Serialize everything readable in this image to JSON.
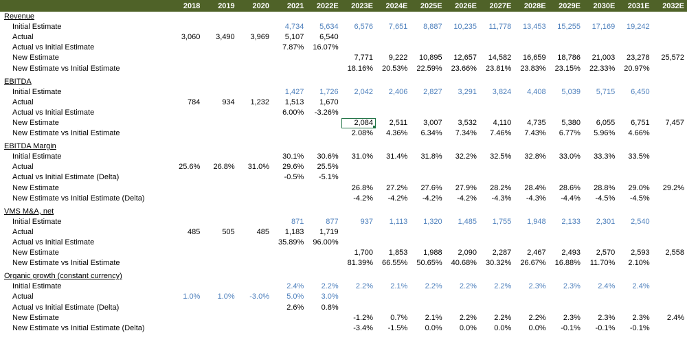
{
  "header": {
    "label": "",
    "years": [
      "2018",
      "2019",
      "2020",
      "2021",
      "2022E",
      "2023E",
      "2024E",
      "2025E",
      "2026E",
      "2027E",
      "2028E",
      "2029E",
      "2030E",
      "2031E",
      "2032E"
    ]
  },
  "sections": [
    {
      "title": "Revenue",
      "rows": [
        {
          "label": "Initial Estimate",
          "values": [
            "",
            "",
            "",
            "4,734",
            "5,634",
            "6,576",
            "7,651",
            "8,887",
            "10,235",
            "11,778",
            "13,453",
            "15,255",
            "17,169",
            "19,242",
            ""
          ],
          "blue": [
            3,
            4,
            5,
            6,
            7,
            8,
            9,
            10,
            11,
            12,
            13
          ]
        },
        {
          "label": "Actual",
          "values": [
            "3,060",
            "3,490",
            "3,969",
            "5,107",
            "6,540",
            "",
            "",
            "",
            "",
            "",
            "",
            "",
            "",
            "",
            ""
          ],
          "blue": []
        },
        {
          "label": "Actual vs Initial Estimate",
          "values": [
            "",
            "",
            "",
            "7.87%",
            "16.07%",
            "",
            "",
            "",
            "",
            "",
            "",
            "",
            "",
            "",
            ""
          ],
          "blue": []
        },
        {
          "label": "New Estimate",
          "values": [
            "",
            "",
            "",
            "",
            "",
            "7,771",
            "9,222",
            "10,895",
            "12,657",
            "14,582",
            "16,659",
            "18,786",
            "21,003",
            "23,278",
            "25,572"
          ],
          "blue": []
        },
        {
          "label": "New Estimate vs Initial Estimate",
          "values": [
            "",
            "",
            "",
            "",
            "",
            "18.16%",
            "20.53%",
            "22.59%",
            "23.66%",
            "23.81%",
            "23.83%",
            "23.15%",
            "22.33%",
            "20.97%",
            ""
          ],
          "blue": []
        }
      ]
    },
    {
      "title": "EBITDA",
      "rows": [
        {
          "label": "Initial Estimate",
          "values": [
            "",
            "",
            "",
            "1,427",
            "1,726",
            "2,042",
            "2,406",
            "2,827",
            "3,291",
            "3,824",
            "4,408",
            "5,039",
            "5,715",
            "6,450",
            ""
          ],
          "blue": [
            3,
            4,
            5,
            6,
            7,
            8,
            9,
            10,
            11,
            12,
            13
          ]
        },
        {
          "label": "Actual",
          "values": [
            "784",
            "934",
            "1,232",
            "1,513",
            "1,670",
            "",
            "",
            "",
            "",
            "",
            "",
            "",
            "",
            "",
            ""
          ],
          "blue": []
        },
        {
          "label": "Actual vs Initial Estimate",
          "values": [
            "",
            "",
            "",
            "6.00%",
            "-3.26%",
            "",
            "",
            "",
            "",
            "",
            "",
            "",
            "",
            "",
            ""
          ],
          "blue": []
        },
        {
          "label": "New Estimate",
          "values": [
            "",
            "",
            "",
            "",
            "",
            "2,084",
            "2,511",
            "3,007",
            "3,532",
            "4,110",
            "4,735",
            "5,380",
            "6,055",
            "6,751",
            "7,457"
          ],
          "blue": [],
          "selected": 5
        },
        {
          "label": "New Estimate vs Initial Estimate",
          "values": [
            "",
            "",
            "",
            "",
            "",
            "2.08%",
            "4.36%",
            "6.34%",
            "7.34%",
            "7.46%",
            "7.43%",
            "6.77%",
            "5.96%",
            "4.66%",
            ""
          ],
          "blue": []
        }
      ]
    },
    {
      "title": "EBITDA Margin",
      "rows": [
        {
          "label": "Initial Estimate",
          "values": [
            "",
            "",
            "",
            "30.1%",
            "30.6%",
            "31.0%",
            "31.4%",
            "31.8%",
            "32.2%",
            "32.5%",
            "32.8%",
            "33.0%",
            "33.3%",
            "33.5%",
            ""
          ],
          "blue": []
        },
        {
          "label": "Actual",
          "values": [
            "25.6%",
            "26.8%",
            "31.0%",
            "29.6%",
            "25.5%",
            "",
            "",
            "",
            "",
            "",
            "",
            "",
            "",
            "",
            ""
          ],
          "blue": []
        },
        {
          "label": "Actual vs Initial Estimate (Delta)",
          "values": [
            "",
            "",
            "",
            "-0.5%",
            "-5.1%",
            "",
            "",
            "",
            "",
            "",
            "",
            "",
            "",
            "",
            ""
          ],
          "blue": []
        },
        {
          "label": "New Estimate",
          "values": [
            "",
            "",
            "",
            "",
            "",
            "26.8%",
            "27.2%",
            "27.6%",
            "27.9%",
            "28.2%",
            "28.4%",
            "28.6%",
            "28.8%",
            "29.0%",
            "29.2%"
          ],
          "blue": []
        },
        {
          "label": "New Estimate vs Initial Estimate (Delta)",
          "values": [
            "",
            "",
            "",
            "",
            "",
            "-4.2%",
            "-4.2%",
            "-4.2%",
            "-4.2%",
            "-4.3%",
            "-4.3%",
            "-4.4%",
            "-4.5%",
            "-4.5%",
            ""
          ],
          "blue": []
        }
      ]
    },
    {
      "title": "VMS M&A, net",
      "rows": [
        {
          "label": "Initial Estimate",
          "values": [
            "",
            "",
            "",
            "871",
            "877",
            "937",
            "1,113",
            "1,320",
            "1,485",
            "1,755",
            "1,948",
            "2,133",
            "2,301",
            "2,540",
            ""
          ],
          "blue": [
            3,
            4,
            5,
            6,
            7,
            8,
            9,
            10,
            11,
            12,
            13
          ]
        },
        {
          "label": "Actual",
          "values": [
            "485",
            "505",
            "485",
            "1,183",
            "1,719",
            "",
            "",
            "",
            "",
            "",
            "",
            "",
            "",
            "",
            ""
          ],
          "blue": []
        },
        {
          "label": "Actual vs Initial Estimate",
          "values": [
            "",
            "",
            "",
            "35.89%",
            "96.00%",
            "",
            "",
            "",
            "",
            "",
            "",
            "",
            "",
            "",
            ""
          ],
          "blue": []
        },
        {
          "label": "New Estimate",
          "values": [
            "",
            "",
            "",
            "",
            "",
            "1,700",
            "1,853",
            "1,988",
            "2,090",
            "2,287",
            "2,467",
            "2,493",
            "2,570",
            "2,593",
            "2,558"
          ],
          "blue": []
        },
        {
          "label": "New Estimate vs Initial Estimate",
          "values": [
            "",
            "",
            "",
            "",
            "",
            "81.39%",
            "66.55%",
            "50.65%",
            "40.68%",
            "30.32%",
            "26.67%",
            "16.88%",
            "11.70%",
            "2.10%",
            ""
          ],
          "blue": []
        }
      ]
    },
    {
      "title": "Organic growth (constant currency)",
      "rows": [
        {
          "label": "Initial Estimate",
          "values": [
            "",
            "",
            "",
            "2.4%",
            "2.2%",
            "2.2%",
            "2.1%",
            "2.2%",
            "2.2%",
            "2.2%",
            "2.3%",
            "2.3%",
            "2.4%",
            "2.4%",
            ""
          ],
          "blue": [
            3,
            4,
            5,
            6,
            7,
            8,
            9,
            10,
            11,
            12,
            13
          ]
        },
        {
          "label": "Actual",
          "values": [
            "1.0%",
            "1.0%",
            "-3.0%",
            "5.0%",
            "3.0%",
            "",
            "",
            "",
            "",
            "",
            "",
            "",
            "",
            "",
            ""
          ],
          "blue": [
            0,
            1,
            2,
            3,
            4
          ]
        },
        {
          "label": "Actual vs Initial Estimate (Delta)",
          "values": [
            "",
            "",
            "",
            "2.6%",
            "0.8%",
            "",
            "",
            "",
            "",
            "",
            "",
            "",
            "",
            "",
            ""
          ],
          "blue": []
        },
        {
          "label": "New Estimate",
          "values": [
            "",
            "",
            "",
            "",
            "",
            "-1.2%",
            "0.7%",
            "2.1%",
            "2.2%",
            "2.2%",
            "2.2%",
            "2.3%",
            "2.3%",
            "2.3%",
            "2.4%"
          ],
          "blue": []
        },
        {
          "label": "New Estimate vs Initial Estimate (Delta)",
          "values": [
            "",
            "",
            "",
            "",
            "",
            "-3.4%",
            "-1.5%",
            "0.0%",
            "0.0%",
            "0.0%",
            "0.0%",
            "-0.1%",
            "-0.1%",
            "-0.1%",
            ""
          ],
          "blue": []
        }
      ]
    }
  ]
}
